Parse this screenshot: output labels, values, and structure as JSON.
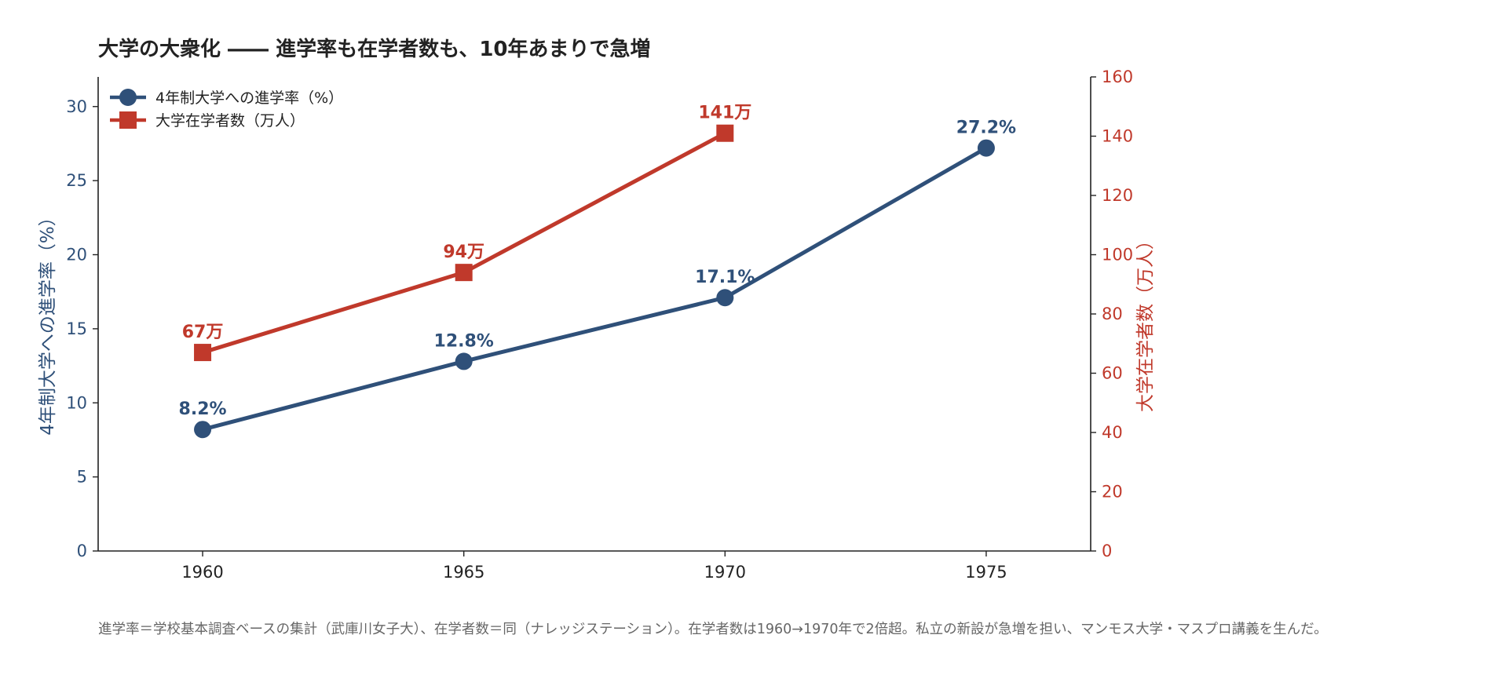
{
  "chart_data": {
    "type": "line",
    "title": "大学の大衆化 ―― 進学率も在学者数も、10年あまりで急増",
    "x": [
      1960,
      1965,
      1970,
      1975
    ],
    "xticks": [
      "1960",
      "1965",
      "1970",
      "1975"
    ],
    "xlim": [
      1958,
      1977
    ],
    "grid": false,
    "legend_position": "top-left",
    "series": [
      {
        "name": "4年制大学への進学率（%）",
        "axis": "left",
        "marker": "circle",
        "color": "#2f5079",
        "x": [
          1960,
          1965,
          1970,
          1975
        ],
        "values": [
          8.2,
          12.8,
          17.1,
          27.2
        ],
        "labels": [
          "8.2%",
          "12.8%",
          "17.1%",
          "27.2%"
        ]
      },
      {
        "name": "大学在学者数（万人）",
        "axis": "right",
        "marker": "square",
        "color": "#c0392b",
        "x": [
          1960,
          1965,
          1970
        ],
        "values": [
          67,
          94,
          141
        ],
        "labels": [
          "67万",
          "94万",
          "141万"
        ]
      }
    ],
    "y_left": {
      "label": "4年制大学への進学率（%）",
      "ylim": [
        0,
        32
      ],
      "ticks": [
        0,
        5,
        10,
        15,
        20,
        25,
        30
      ],
      "color": "#2f5079"
    },
    "y_right": {
      "label": "大学在学者数（万人）",
      "ylim": [
        0,
        160
      ],
      "ticks": [
        0,
        20,
        40,
        60,
        80,
        100,
        120,
        140,
        160
      ],
      "color": "#c0392b"
    },
    "note": "進学率＝学校基本調査ベースの集計（武庫川女子大）、在学者数＝同（ナレッジステーション）。在学者数は1960→1970年で2倍超。私立の新設が急増を担い、マンモス大学・マスプロ講義を生んだ。"
  }
}
